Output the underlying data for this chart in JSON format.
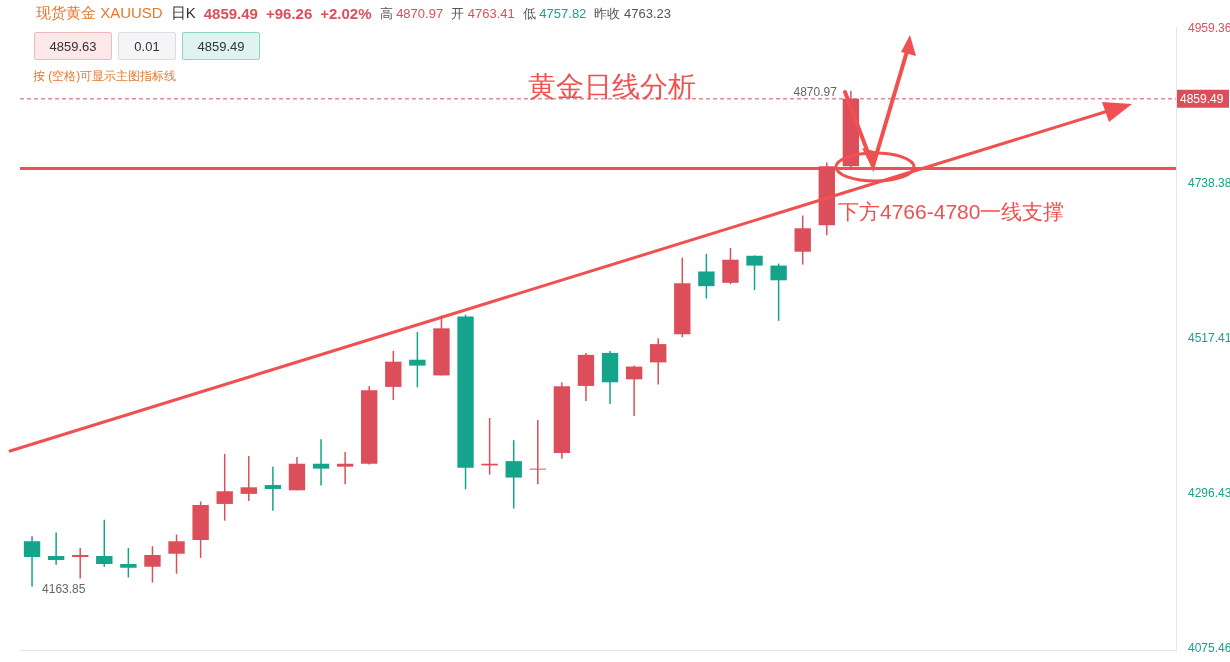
{
  "chart_data": {
    "type": "candlestick",
    "title": "黄金日线分析",
    "categories": [
      null,
      null,
      null,
      null,
      null,
      null,
      null,
      null,
      null,
      null,
      null,
      null,
      null,
      null,
      null,
      null,
      null,
      null,
      null,
      null,
      null,
      null,
      null,
      null,
      null,
      null,
      null,
      null,
      null,
      null,
      null,
      null,
      null,
      null,
      null,
      null,
      null,
      null,
      null,
      null,
      null,
      null,
      null,
      null,
      null,
      null,
      null,
      null
    ],
    "ohlc": [
      [
        4228.3,
        4235.3,
        4163.85,
        4205.9
      ],
      [
        4207.2,
        4240.9,
        4194.6,
        4201.7
      ],
      [
        4205.9,
        4218.5,
        4175.0,
        4208.7
      ],
      [
        4207.2,
        4259.0,
        4191.9,
        4196.0
      ],
      [
        4196.0,
        4218.5,
        4176.5,
        4190.5
      ],
      [
        4191.9,
        4221.3,
        4169.5,
        4208.7
      ],
      [
        4210.5,
        4238.0,
        4182.0,
        4228.3
      ],
      [
        4230.0,
        4285.0,
        4204.5,
        4280.0
      ],
      [
        4281.5,
        4352.9,
        4257.6,
        4299.6
      ],
      [
        4295.9,
        4350.0,
        4285.6,
        4305.3
      ],
      [
        4308.5,
        4334.7,
        4271.7,
        4302.9
      ],
      [
        4301.0,
        4348.6,
        4301.0,
        4338.9
      ],
      [
        4338.9,
        4373.9,
        4308.0,
        4331.9
      ],
      [
        4334.7,
        4355.6,
        4309.5,
        4338.9
      ],
      [
        4338.9,
        4449.5,
        4337.9,
        4443.9
      ],
      [
        4448.5,
        4499.9,
        4429.9,
        4484.5
      ],
      [
        4487.3,
        4526.9,
        4448.0,
        4478.9
      ],
      [
        4464.9,
        4550.3,
        4464.9,
        4532.1
      ],
      [
        4548.9,
        4551.7,
        4302.5,
        4333.0
      ],
      [
        4336.5,
        4404.2,
        4323.5,
        4338.9
      ],
      [
        4342.6,
        4372.5,
        4274.9,
        4319.2
      ],
      [
        4330.5,
        4401.4,
        4309.5,
        4331.9
      ],
      [
        4354.3,
        4455.1,
        4345.9,
        4449.5
      ],
      [
        4449.9,
        4497.0,
        4428.4,
        4494.2
      ],
      [
        4497.0,
        4499.9,
        4424.2,
        4455.1
      ],
      [
        4459.3,
        4478.9,
        4407.0,
        4477.5
      ],
      [
        4483.5,
        4518.0,
        4452.0,
        4509.6
      ],
      [
        4523.6,
        4632.9,
        4519.4,
        4596.4
      ],
      [
        4613.2,
        4638.4,
        4574.8,
        4592.2
      ],
      [
        4597.0,
        4646.8,
        4595.0,
        4630.0
      ],
      [
        4635.6,
        4636.0,
        4586.6,
        4621.6
      ],
      [
        4621.6,
        4624.4,
        4542.7,
        4600.6
      ],
      [
        4641.2,
        4693.0,
        4623.0,
        4674.8
      ],
      [
        4679.0,
        4768.6,
        4665.0,
        4763.23
      ],
      [
        4763.41,
        4870.97,
        4757.82,
        4859.49
      ],
      null,
      null,
      null,
      null,
      null,
      null,
      null,
      null,
      null,
      null,
      null,
      null,
      null
    ],
    "colors": [
      "#14a38b",
      "#14a38b",
      "#dc4f5a",
      "#14a38b",
      "#14a38b",
      "#dc4f5a",
      "#dc4f5a",
      "#dc4f5a",
      "#dc4f5a",
      "#dc4f5a",
      "#14a38b",
      "#dc4f5a",
      "#14a38b",
      "#dc4f5a",
      "#dc4f5a",
      "#dc4f5a",
      "#14a38b",
      "#dc4f5a",
      "#14a38b",
      "#dc4f5a",
      "#14a38b",
      "#dc4f5a",
      "#dc4f5a",
      "#dc4f5a",
      "#14a38b",
      "#dc4f5a",
      "#dc4f5a",
      "#dc4f5a",
      "#14a38b",
      "#dc4f5a",
      "#14a38b",
      "#14a38b",
      "#dc4f5a",
      "#dc4f5a",
      "#dc4f5a",
      null,
      null,
      null,
      null,
      null,
      null,
      null,
      null,
      null,
      null,
      null,
      null,
      null
    ],
    "ylim": [
      4072,
      4962
    ],
    "yticks": [
      4075.46,
      4296.43,
      4517.41,
      4738.38,
      4959.36
    ],
    "tick_labels": "y",
    "grid": false,
    "legend": false,
    "ref_lines": [
      {
        "axis": "y",
        "value": 4859.49,
        "label": "4859.49",
        "color": "#dc4f5a",
        "line_style": "dashed"
      },
      {
        "axis": "y",
        "value": 4760,
        "color": "#f0504f",
        "line_style": "solid"
      }
    ],
    "annotations": [
      "现货黄金 XAUUSD",
      "日K",
      "4859.49",
      "+96.26",
      "+2.02%",
      "高 4870.97",
      "开 4763.41",
      "低 4757.82",
      "昨收 4763.23",
      "4859.63",
      "0.01",
      "4859.49",
      "按 (空格)可显示主图指标线",
      "下方4766-4780一线支撑",
      "4163.85",
      "4870.97"
    ]
  }
}
